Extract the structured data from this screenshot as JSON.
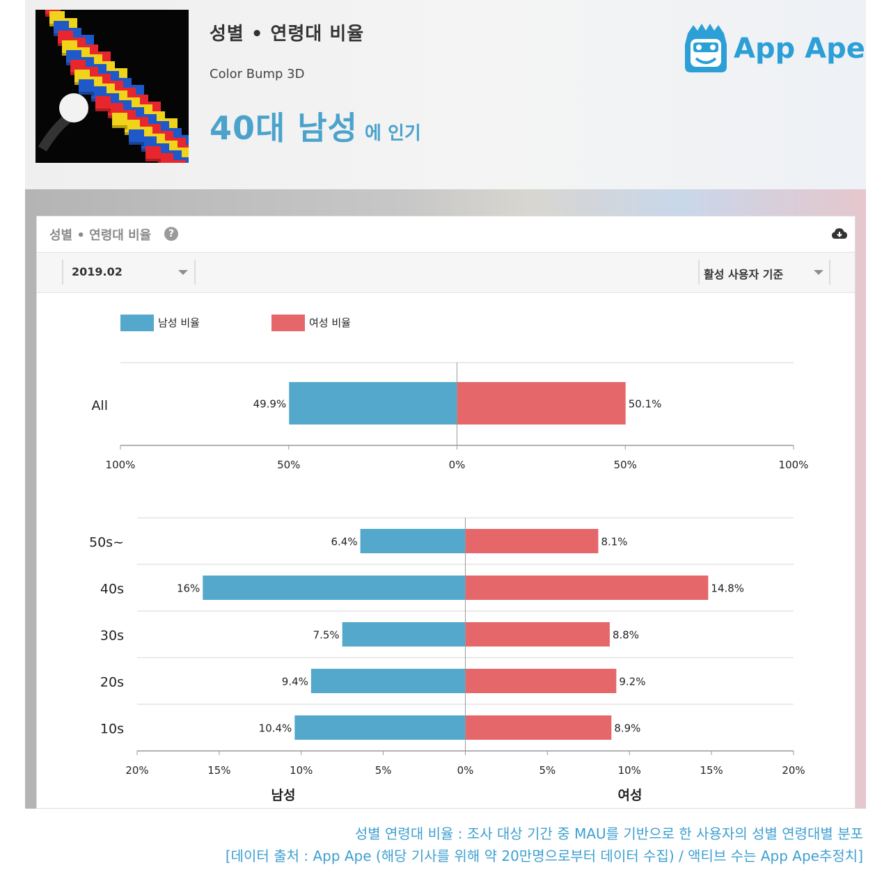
{
  "header": {
    "title": "성별 • 연령대 비율",
    "app_name": "Color Bump 3D",
    "headline_main": "40대 남성",
    "headline_suffix": "에 인기",
    "brand": "App Ape"
  },
  "panel": {
    "title": "성별 • 연령대 비율",
    "help_icon": "question-circle-icon",
    "download_icon": "cloud-download-icon",
    "month_select": "2019.02",
    "basis_select": "활성 사용자 기준"
  },
  "colors": {
    "male": "#53a8cb",
    "female": "#e5676a",
    "accent": "#4ba3cc"
  },
  "chart_data": [
    {
      "type": "bar",
      "orientation": "horizontal-diverging",
      "legend": [
        "남성 비율",
        "여성 비율"
      ],
      "categories": [
        "All"
      ],
      "series": [
        {
          "name": "남성 비율",
          "values": [
            49.9
          ],
          "labels": [
            "49.9%"
          ]
        },
        {
          "name": "여성 비율",
          "values": [
            50.1
          ],
          "labels": [
            "50.1%"
          ]
        }
      ],
      "xlim": [
        -100,
        100
      ],
      "ticks": [
        "100%",
        "50%",
        "0%",
        "50%",
        "100%"
      ]
    },
    {
      "type": "bar",
      "orientation": "horizontal-diverging",
      "categories": [
        "50s~",
        "40s",
        "30s",
        "20s",
        "10s"
      ],
      "series": [
        {
          "name": "남성 비율",
          "values": [
            6.4,
            16,
            7.5,
            9.4,
            10.4
          ],
          "labels": [
            "6.4%",
            "16%",
            "7.5%",
            "9.4%",
            "10.4%"
          ]
        },
        {
          "name": "여성 비율",
          "values": [
            8.1,
            14.8,
            8.8,
            9.2,
            8.9
          ],
          "labels": [
            "8.1%",
            "14.8%",
            "8.8%",
            "9.2%",
            "8.9%"
          ]
        }
      ],
      "xlim": [
        -20,
        20
      ],
      "ticks": [
        "20%",
        "15%",
        "10%",
        "5%",
        "0%",
        "5%",
        "10%",
        "15%",
        "20%"
      ],
      "xlabel_left": "남성",
      "xlabel_right": "여성"
    }
  ],
  "caption": {
    "line1": "성별 연령대 비율 : 조사 대상 기간 중 MAU를 기반으로 한 사용자의 성별 연령대별 분포",
    "line2": "[데이터 출처 : App Ape (해당 기사를 위해 약 20만명으로부터 데이터 수집) / 액티브 수는 App Ape추정치]"
  }
}
